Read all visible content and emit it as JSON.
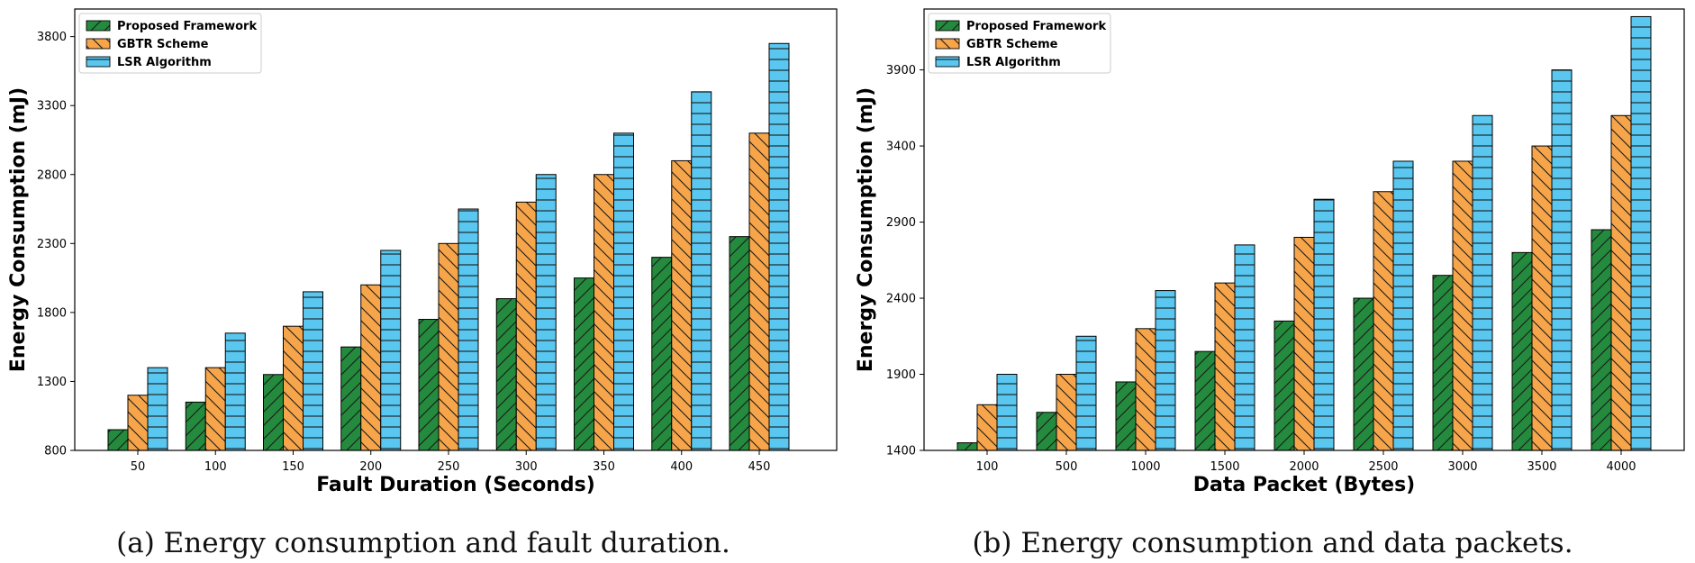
{
  "chart_data": [
    {
      "type": "bar",
      "title": "",
      "caption": "(a) Energy consumption and fault duration.",
      "xlabel": "Fault Duration (Seconds)",
      "ylabel": "Energy Consumption (mJ)",
      "categories": [
        "50",
        "100",
        "150",
        "200",
        "250",
        "300",
        "350",
        "400",
        "450"
      ],
      "series": [
        {
          "name": "Proposed Framework",
          "color": "#248a3d",
          "hatch": "forward-diagonal",
          "values": [
            950,
            1150,
            1350,
            1550,
            1750,
            1900,
            2050,
            2200,
            2350
          ]
        },
        {
          "name": "GBTR Scheme",
          "color": "#f7a54a",
          "hatch": "back-diagonal",
          "values": [
            1200,
            1400,
            1700,
            2000,
            2300,
            2600,
            2800,
            2900,
            3100
          ]
        },
        {
          "name": "LSR Algorithm",
          "color": "#59c7f0",
          "hatch": "horizontal",
          "values": [
            1400,
            1650,
            1950,
            2250,
            2550,
            2800,
            3100,
            3400,
            3750
          ]
        }
      ],
      "yticks": [
        800,
        1300,
        1800,
        2300,
        2800,
        3300,
        3800
      ],
      "ylim": [
        800,
        4000
      ],
      "legend": "top-left",
      "grid": false
    },
    {
      "type": "bar",
      "title": "",
      "caption": "(b) Energy consumption and data packets.",
      "xlabel": "Data Packet (Bytes)",
      "ylabel": "Energy Consumption (mJ)",
      "categories": [
        "100",
        "500",
        "1000",
        "1500",
        "2000",
        "2500",
        "3000",
        "3500",
        "4000"
      ],
      "series": [
        {
          "name": "Proposed Framework",
          "color": "#248a3d",
          "hatch": "forward-diagonal",
          "values": [
            1450,
            1650,
            1850,
            2050,
            2250,
            2400,
            2550,
            2700,
            2850
          ]
        },
        {
          "name": "GBTR Scheme",
          "color": "#f7a54a",
          "hatch": "back-diagonal",
          "values": [
            1700,
            1900,
            2200,
            2500,
            2800,
            3100,
            3300,
            3400,
            3600
          ]
        },
        {
          "name": "LSR Algorithm",
          "color": "#59c7f0",
          "hatch": "horizontal",
          "values": [
            1900,
            2150,
            2450,
            2750,
            3050,
            3300,
            3600,
            3900,
            4250
          ]
        }
      ],
      "yticks": [
        1400,
        1900,
        2400,
        2900,
        3400,
        3900
      ],
      "ylim": [
        1400,
        4300
      ],
      "legend": "top-left",
      "grid": false
    }
  ]
}
